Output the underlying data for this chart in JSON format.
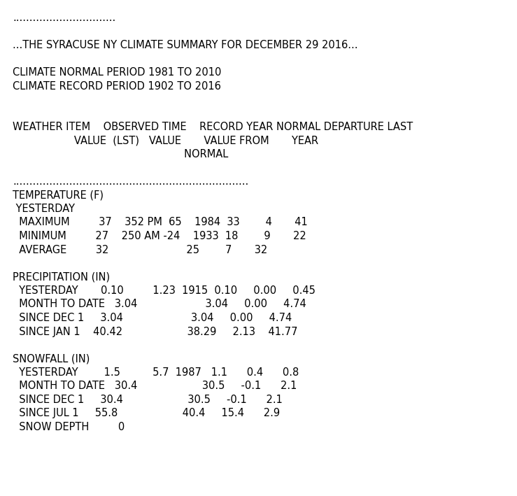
{
  "bg_color": "#ffffff",
  "text_color": "#000000",
  "font_family": "Courier New",
  "font_size": 10.5,
  "fig_width": 7.39,
  "fig_height": 7.09,
  "dpi": 100,
  "lines": [
    "...............................",
    "",
    "...THE SYRACUSE NY CLIMATE SUMMARY FOR DECEMBER 29 2016...",
    "",
    "CLIMATE NORMAL PERIOD 1981 TO 2010",
    "CLIMATE RECORD PERIOD 1902 TO 2016",
    "",
    "",
    "WEATHER ITEM    OBSERVED TIME    RECORD YEAR NORMAL DEPARTURE LAST",
    "                   VALUE  (LST)   VALUE       VALUE FROM       YEAR",
    "                                                     NORMAL",
    "",
    ".......................................................................",
    "TEMPERATURE (F)",
    " YESTERDAY",
    "  MAXIMUM         37    352 PM  65    1984  33        4       41",
    "  MINIMUM         27    250 AM -24    1933  18        9       22",
    "  AVERAGE         32                        25        7       32",
    "",
    "PRECIPITATION (IN)",
    "  YESTERDAY       0.10         1.23  1915  0.10     0.00     0.45",
    "  MONTH TO DATE   3.04                     3.04     0.00     4.74",
    "  SINCE DEC 1     3.04                     3.04     0.00     4.74",
    "  SINCE JAN 1    40.42                    38.29     2.13    41.77",
    "",
    "SNOWFALL (IN)",
    "  YESTERDAY        1.5          5.7  1987   1.1      0.4      0.8",
    "  MONTH TO DATE   30.4                    30.5     -0.1      2.1",
    "  SINCE DEC 1     30.4                    30.5     -0.1      2.1",
    "  SINCE JUL 1     55.8                    40.4     15.4      2.9",
    "  SNOW DEPTH         0"
  ]
}
